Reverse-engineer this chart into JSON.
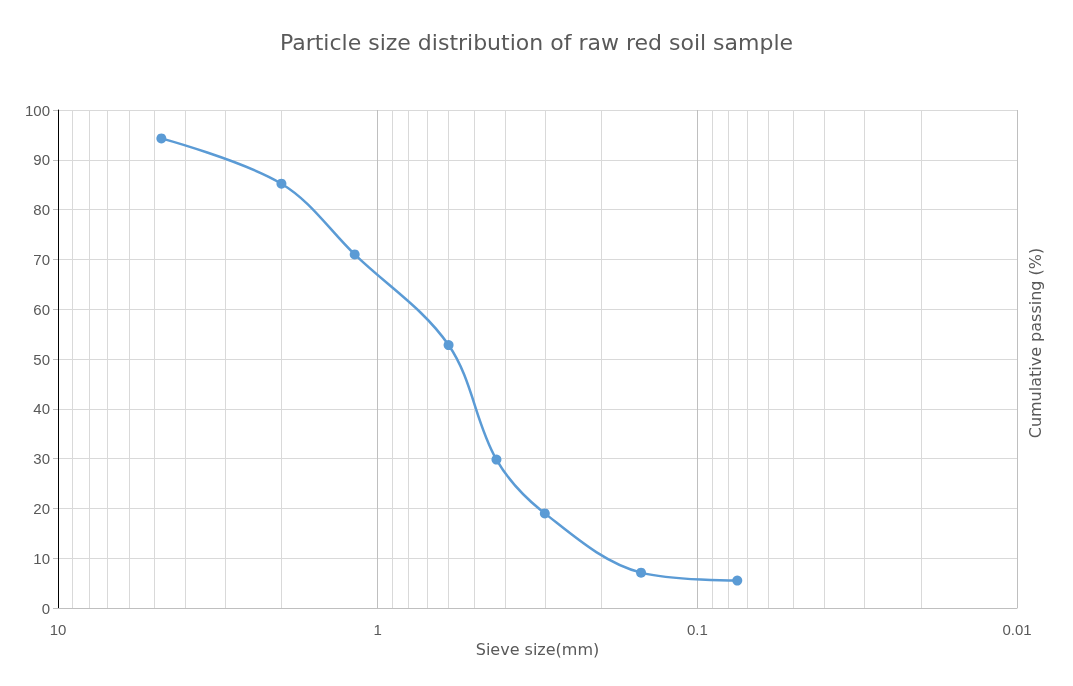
{
  "chart_data": {
    "type": "line",
    "title": "Particle size distribution of raw red soil sample",
    "xlabel": "Sieve size(mm)",
    "ylabel": "Cumulative passing (%)",
    "x": [
      4.75,
      2,
      1.18,
      0.6,
      0.425,
      0.3,
      0.15,
      0.075
    ],
    "series": [
      {
        "color": "#5b9bd5",
        "values": [
          94.3,
          85.2,
          71,
          52.8,
          29.8,
          19,
          7.1,
          5.5
        ]
      }
    ],
    "log": "x",
    "xlim": [
      10,
      0.01
    ],
    "xticks": [
      10,
      1,
      0.1,
      0.01
    ],
    "ylim": [
      0,
      100
    ],
    "yticks": [
      0,
      10,
      20,
      30,
      40,
      50,
      60,
      70,
      80,
      90,
      100
    ],
    "grid": true,
    "marker": "circle",
    "line_style": "solid"
  }
}
